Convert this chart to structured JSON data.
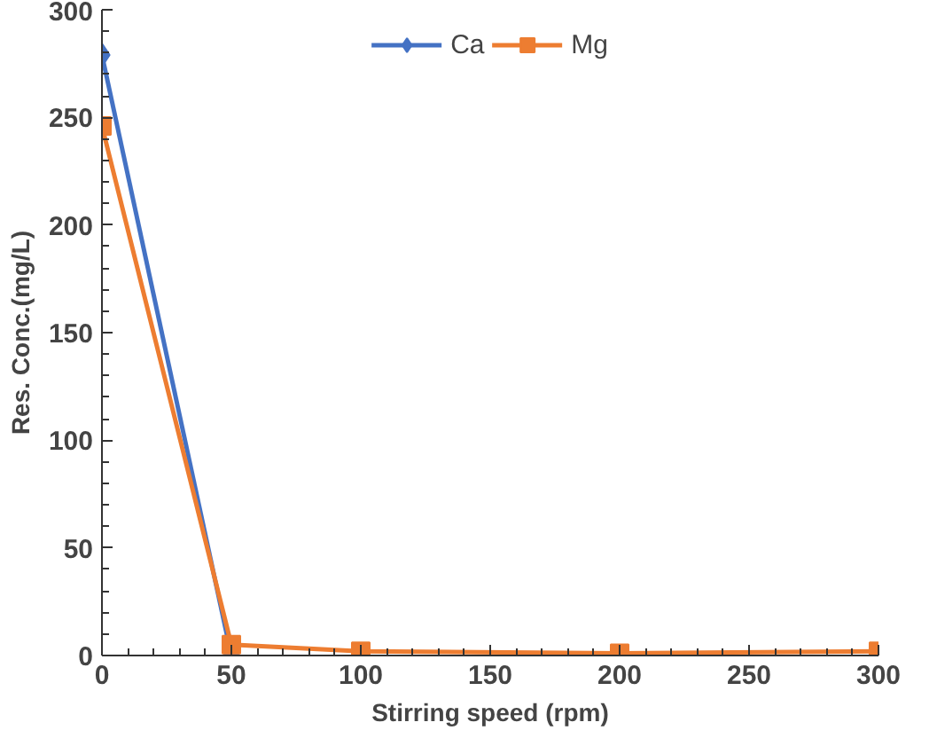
{
  "chart_data": {
    "type": "line",
    "xlabel": "Stirring speed (rpm)",
    "ylabel": "Res. Conc.(mg/L)",
    "x": [
      0,
      50,
      100,
      200,
      300
    ],
    "series": [
      {
        "name": "Ca",
        "color": "#4472c4",
        "marker": "diamond",
        "values": [
          279,
          0,
          null,
          null,
          null
        ]
      },
      {
        "name": "Mg",
        "color": "#ed7d31",
        "marker": "square",
        "values": [
          246,
          5,
          2,
          1,
          2
        ]
      }
    ],
    "xlim": [
      0,
      300
    ],
    "ylim": [
      0,
      300
    ],
    "xticks": [
      0,
      50,
      100,
      150,
      200,
      250,
      300
    ],
    "yticks": [
      0,
      50,
      100,
      150,
      200,
      250,
      300
    ],
    "grid": false,
    "legend": "top"
  }
}
